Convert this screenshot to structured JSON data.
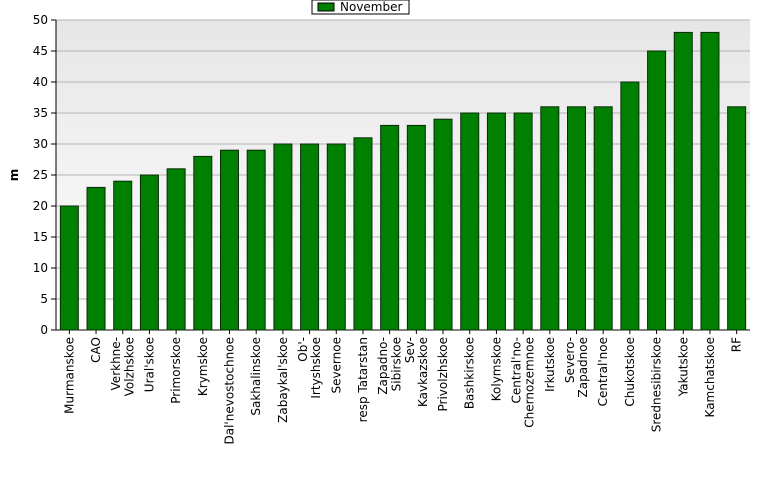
{
  "chart_data": {
    "type": "bar",
    "y_label": "m",
    "categories": [
      "Murmanskoe",
      "CAO",
      "Verkhne-\nVolzhskoe",
      "Ural'skoe",
      "Primorskoe",
      "Krymskoe",
      "Dal'nevostochnoe",
      "Sakhalinskoe",
      "Zabaykal'skoe",
      "Ob'-\nIrtyshskoe",
      "Severnoe",
      "resp Tatarstan",
      "Zapadno-\nSibirskoe",
      "Sev-\nKavkazskoe",
      "Privolzhskoe",
      "Bashkirskoe",
      "Kolymskoe",
      "Central'no-\nChernozemnoe",
      "Irkutskoe",
      "Severo-\nZapadnoe",
      "Central'noe",
      "Chukotskoe",
      "Srednesibirskoe",
      "Yakutskoe",
      "Kamchatskoe",
      "RF"
    ],
    "series": [
      {
        "name": "November",
        "color": "#008000",
        "values": [
          20,
          23,
          24,
          25,
          26,
          28,
          29,
          29,
          30,
          30,
          30,
          31,
          33,
          33,
          34,
          35,
          35,
          35,
          36,
          36,
          36,
          40,
          45,
          48,
          48,
          36
        ]
      }
    ],
    "ylim": [
      0,
      50
    ],
    "yticks": [
      0,
      5,
      10,
      15,
      20,
      25,
      30,
      35,
      40,
      45,
      50
    ],
    "grid": true,
    "legend": "top"
  }
}
